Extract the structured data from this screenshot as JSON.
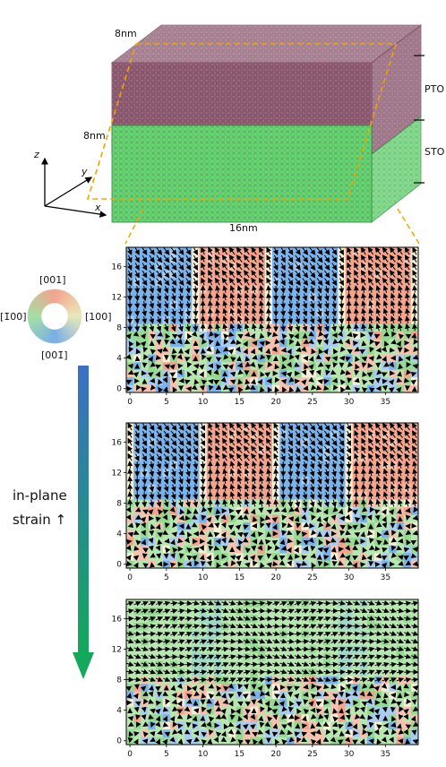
{
  "block": {
    "dim_top": "8nm",
    "dim_side": "8nm",
    "dim_bottom": "16nm",
    "layer_top": "PTO",
    "layer_bottom": "STO",
    "colors": {
      "pto": "#7a3e56",
      "sto": "#3fbf4f",
      "dash": "#f0a500"
    }
  },
  "axes_triad": {
    "z": "z",
    "y": "y",
    "x": "x"
  },
  "color_wheel": {
    "top": "[001]",
    "left": "[1̄00]",
    "right": "[100]",
    "bottom": "[001̄]",
    "colors": {
      "top": "#f4a38d",
      "right": "#e8e8b8",
      "bottom": "#79aee8",
      "left": "#a3e0a3"
    }
  },
  "strain": {
    "label_line1": "in-plane",
    "label_line2": "strain ↑",
    "colors": {
      "start": "#3b6fc4",
      "end": "#14a85a"
    }
  },
  "panels": [
    {
      "xticks": [
        "0",
        "5",
        "10",
        "15",
        "20",
        "25",
        "30",
        "35"
      ],
      "yticks": [
        "0",
        "4",
        "8",
        "12",
        "16"
      ]
    },
    {
      "xticks": [
        "0",
        "5",
        "10",
        "15",
        "20",
        "25",
        "30",
        "35"
      ],
      "yticks": [
        "0",
        "4",
        "8",
        "12",
        "16"
      ]
    },
    {
      "xticks": [
        "0",
        "5",
        "10",
        "15",
        "20",
        "25",
        "30",
        "35"
      ],
      "yticks": [
        "0",
        "4",
        "8",
        "12",
        "16"
      ]
    }
  ]
}
